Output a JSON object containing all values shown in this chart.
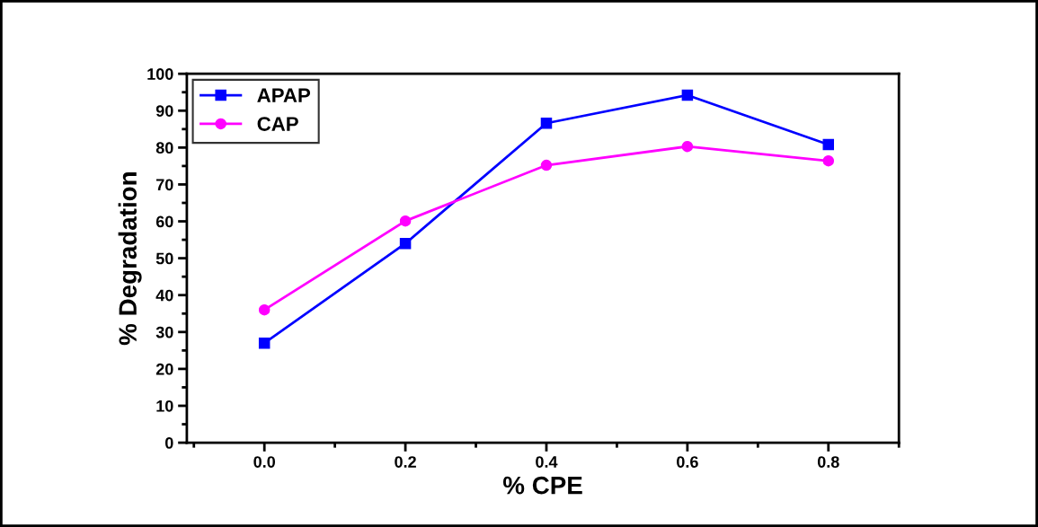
{
  "chart_data": {
    "type": "line",
    "xlabel": "% CPE",
    "ylabel": "% Degradation",
    "x": [
      0.0,
      0.2,
      0.4,
      0.6,
      0.8
    ],
    "series": [
      {
        "name": "APAP",
        "color": "#0000ff",
        "marker": "square",
        "values": [
          27.0,
          54.0,
          86.6,
          94.2,
          80.8
        ]
      },
      {
        "name": "CAP",
        "color": "#ff00ff",
        "marker": "circle",
        "values": [
          36.0,
          60.1,
          75.2,
          80.3,
          76.4
        ]
      }
    ],
    "xlim": [
      -0.11,
      0.9
    ],
    "xticks": [
      {
        "value": 0.0,
        "label": "0.0"
      },
      {
        "value": 0.2,
        "label": "0.2"
      },
      {
        "value": 0.4,
        "label": "0.4"
      },
      {
        "value": 0.6,
        "label": "0.6"
      },
      {
        "value": 0.8,
        "label": "0.8"
      }
    ],
    "ylim": [
      0,
      100
    ],
    "yticks": [
      0,
      10,
      20,
      30,
      40,
      50,
      60,
      70,
      80,
      90,
      100
    ],
    "grid": false,
    "legend": "top left",
    "line_style": "solid"
  }
}
